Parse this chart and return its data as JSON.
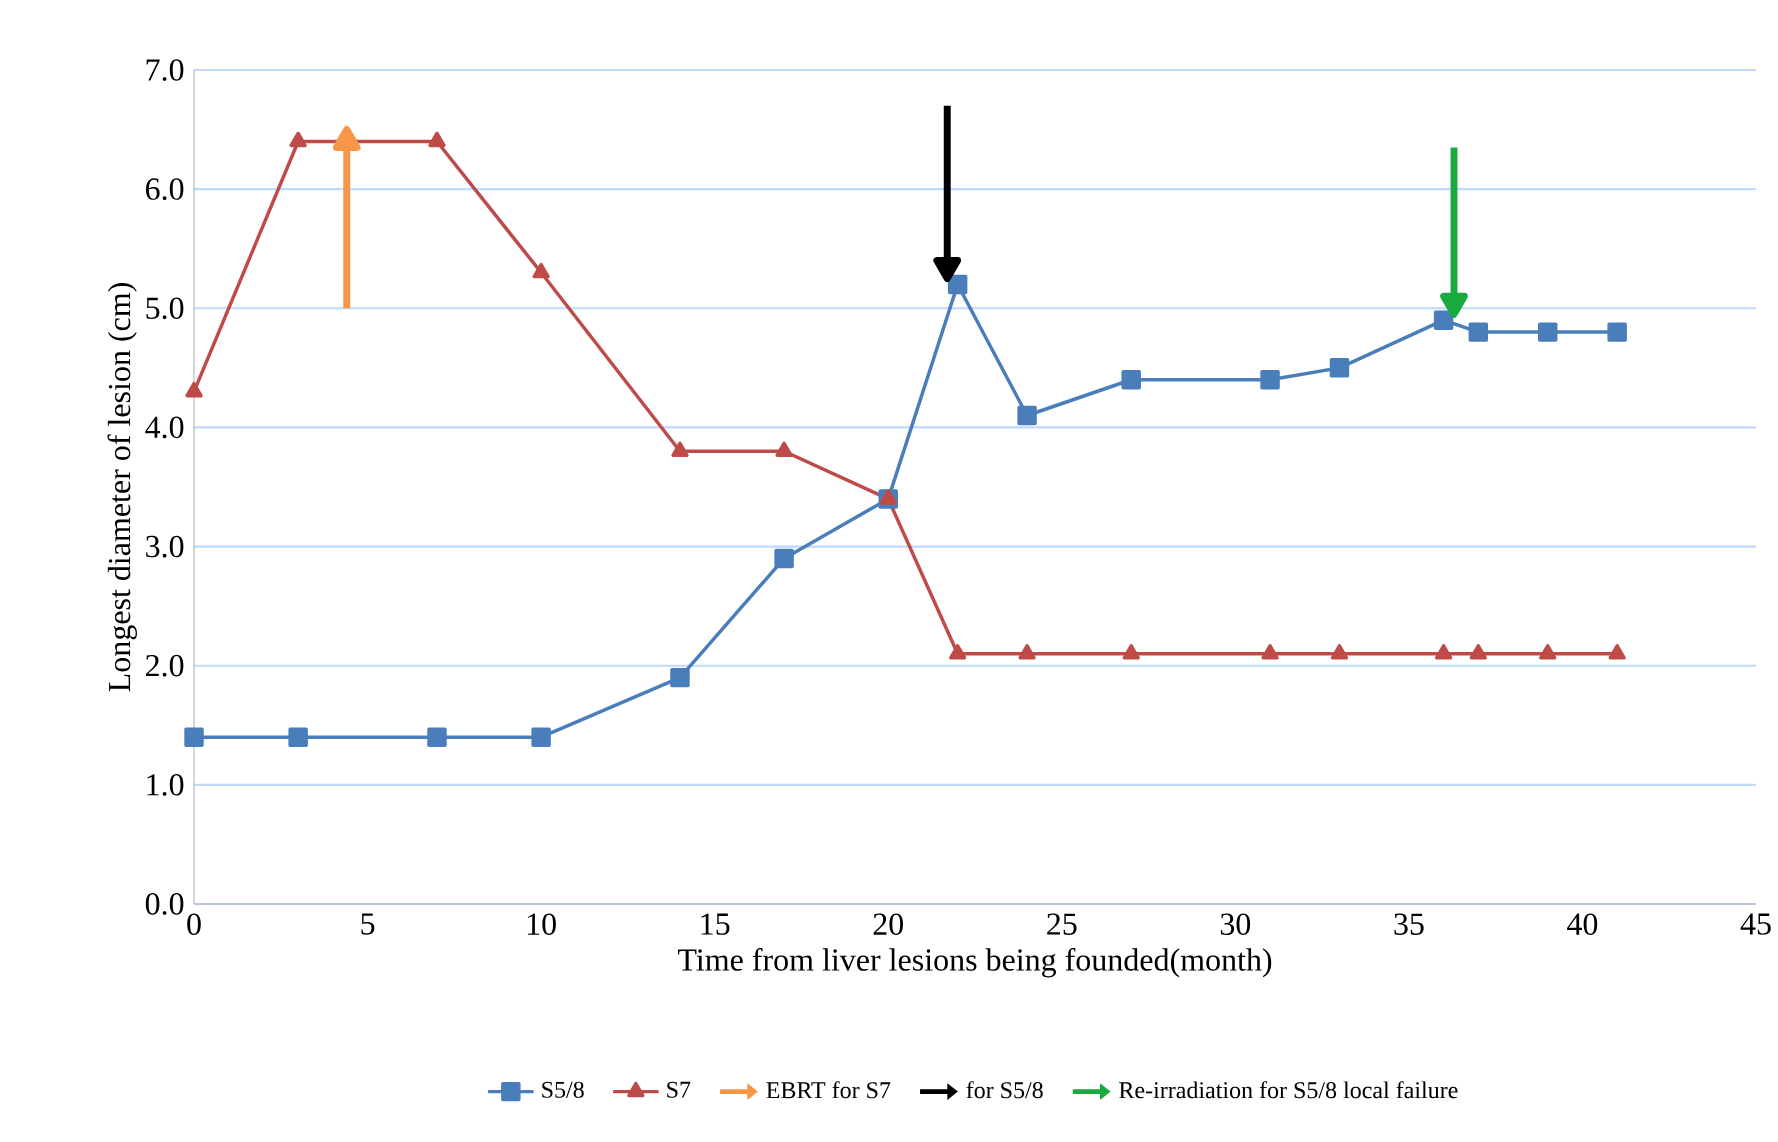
{
  "chart_data": {
    "type": "line",
    "xlabel": "Time from liver lesions being founded(month)",
    "ylabel": "Longest diameter of lesion (cm)",
    "xlim": [
      0,
      45
    ],
    "xticks": [
      0,
      5,
      10,
      15,
      20,
      25,
      30,
      35,
      40,
      45
    ],
    "ylim": [
      0,
      7
    ],
    "yticks": [
      {
        "value": 0,
        "label": "0.0"
      },
      {
        "value": 1,
        "label": "1.0"
      },
      {
        "value": 2,
        "label": "2.0"
      },
      {
        "value": 3,
        "label": "3.0"
      },
      {
        "value": 4,
        "label": "4.0"
      },
      {
        "value": 5,
        "label": "5.0"
      },
      {
        "value": 6,
        "label": "6.0"
      },
      {
        "value": 7,
        "label": "7.0"
      }
    ],
    "grid": "y",
    "legend": "bottom",
    "line_style": "solid",
    "series": [
      {
        "name": "S5/8",
        "color": "#4a7ebb",
        "marker": "square",
        "x": [
          0,
          3,
          7,
          10,
          14,
          17,
          20,
          22,
          24,
          27,
          31,
          33,
          36,
          37,
          39,
          41
        ],
        "values": [
          1.4,
          1.4,
          1.4,
          1.4,
          1.9,
          2.9,
          3.4,
          5.2,
          4.1,
          4.4,
          4.4,
          4.5,
          4.9,
          4.8,
          4.8,
          4.8
        ]
      },
      {
        "name": "S7",
        "color": "#be4b48",
        "marker": "triangle",
        "x": [
          0,
          3,
          7,
          10,
          14,
          17,
          20,
          22,
          24,
          27,
          31,
          33,
          36,
          37,
          39,
          41
        ],
        "values": [
          4.3,
          6.4,
          6.4,
          5.3,
          3.8,
          3.8,
          3.4,
          2.1,
          2.1,
          2.1,
          2.1,
          2.1,
          2.1,
          2.1,
          2.1,
          2.1
        ]
      },
      {
        "name": "EBRT for S7",
        "color": "#f79646",
        "marker": "triangle",
        "x": [
          4.4,
          4.4
        ],
        "values": [
          5.0,
          6.4
        ]
      },
      {
        "name": "for S5/8",
        "color": "#000000",
        "marker": "triangle",
        "x": [
          21.7,
          21.7
        ],
        "values": [
          6.7,
          5.35
        ]
      },
      {
        "name": "Re-irradiation for S5/8 local failure",
        "color": "#1aab40",
        "marker": "triangle",
        "x": [
          36.3,
          36.3
        ],
        "values": [
          6.35,
          5.05
        ]
      }
    ]
  }
}
